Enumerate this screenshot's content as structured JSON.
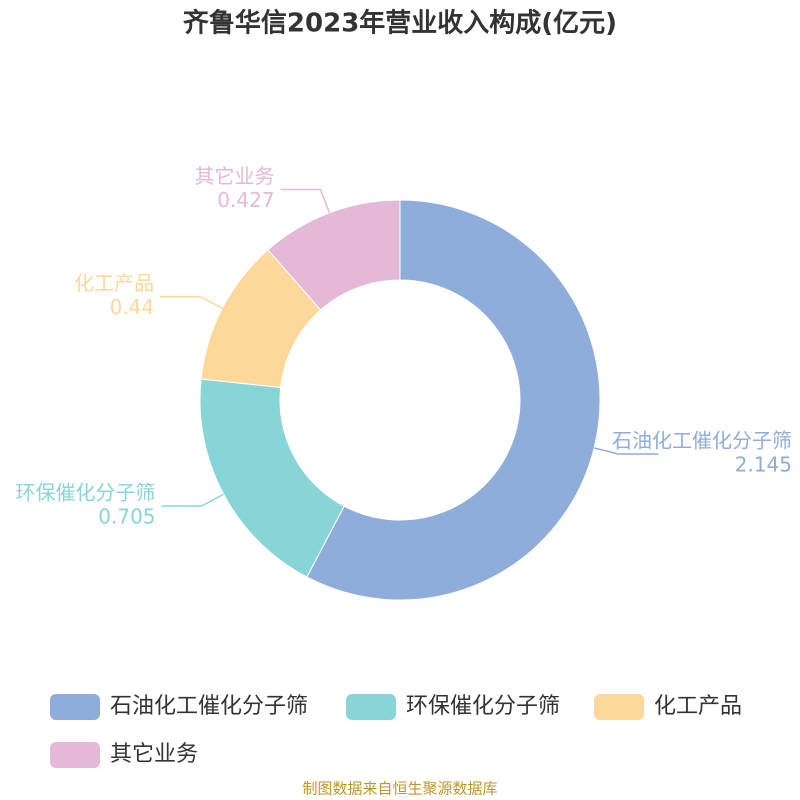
{
  "chart_data": {
    "type": "donut",
    "title": "齐鲁华信2023年营业收入构成(亿元)",
    "categories": [
      "石油化工催化分子筛",
      "环保催化分子筛",
      "化工产品",
      "其它业务"
    ],
    "values": [
      2.145,
      0.705,
      0.44,
      0.427
    ],
    "colors": [
      "#8faddb",
      "#88d5d8",
      "#fdd89a",
      "#e6b8d8"
    ],
    "legend": "bottom",
    "source": "制图数据来自恒生聚源数据库"
  }
}
